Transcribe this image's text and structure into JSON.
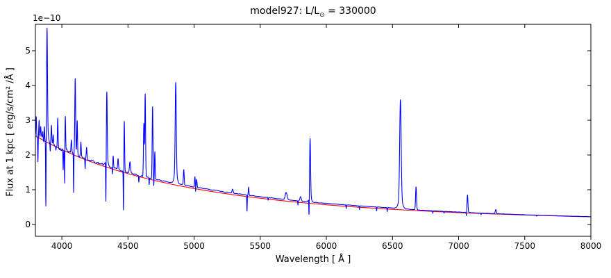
{
  "title": {
    "prefix": "model927: L/L",
    "sun_symbol": "⊙",
    "suffix": " = 330000"
  },
  "axes": {
    "xlabel": "Wavelength [ Å ]",
    "ylabel": "Flux at 1 kpc [ erg/s/cm² /Å ]",
    "y_offset_text": "1e−10",
    "xlim": [
      3800,
      8000
    ],
    "ylim": [
      -0.34,
      5.76
    ],
    "xticks": [
      4000,
      4500,
      5000,
      5500,
      6000,
      6500,
      7000,
      7500,
      8000
    ],
    "yticks": [
      0,
      1,
      2,
      3,
      4,
      5
    ]
  },
  "colors": {
    "spectrum": "#0000ff",
    "continuum": "#ff0000",
    "axis": "#000000",
    "background": "#ffffff",
    "text": "#000000"
  },
  "chart_data": {
    "type": "line",
    "title": "model927: L/L⊙ = 330000",
    "xlabel": "Wavelength [ Å ]",
    "ylabel": "Flux at 1 kpc [ erg/s/cm² /Å ]",
    "y_unit_scale": "1e-10",
    "xlim": [
      3800,
      8000
    ],
    "ylim": [
      -0.34,
      5.76
    ],
    "grid": false,
    "legend": false,
    "series": [
      {
        "name": "continuum-fit",
        "color": "#ff0000",
        "points": [
          [
            3800,
            2.55
          ],
          [
            3900,
            2.341
          ],
          [
            4000,
            2.154
          ],
          [
            4100,
            1.986
          ],
          [
            4200,
            1.834
          ],
          [
            4300,
            1.698
          ],
          [
            4400,
            1.574
          ],
          [
            4500,
            1.462
          ],
          [
            4600,
            1.36
          ],
          [
            4700,
            1.267
          ],
          [
            4800,
            1.182
          ],
          [
            4900,
            1.105
          ],
          [
            5000,
            1.034
          ],
          [
            5100,
            0.969
          ],
          [
            5200,
            0.909
          ],
          [
            5300,
            0.853
          ],
          [
            5400,
            0.802
          ],
          [
            5500,
            0.756
          ],
          [
            5600,
            0.712
          ],
          [
            5700,
            0.672
          ],
          [
            5800,
            0.634
          ],
          [
            5900,
            0.6
          ],
          [
            6000,
            0.567
          ],
          [
            6100,
            0.537
          ],
          [
            6200,
            0.509
          ],
          [
            6300,
            0.483
          ],
          [
            6400,
            0.459
          ],
          [
            6500,
            0.436
          ],
          [
            6600,
            0.415
          ],
          [
            6700,
            0.395
          ],
          [
            6800,
            0.376
          ],
          [
            6900,
            0.358
          ],
          [
            7000,
            0.342
          ],
          [
            7100,
            0.326
          ],
          [
            7200,
            0.311
          ],
          [
            7300,
            0.298
          ],
          [
            7400,
            0.285
          ],
          [
            7500,
            0.272
          ],
          [
            7600,
            0.261
          ],
          [
            7700,
            0.25
          ],
          [
            7800,
            0.239
          ],
          [
            7900,
            0.229
          ],
          [
            8000,
            0.22
          ]
        ]
      },
      {
        "name": "model-spectrum",
        "color": "#0000ff",
        "construction": {
          "base": "continuum-fit + veil_offset + noise",
          "veil_offset": [
            [
              3800,
              0.02
            ],
            [
              4300,
              0.03
            ],
            [
              4700,
              0.04
            ],
            [
              5000,
              0.05
            ],
            [
              5400,
              0.045
            ],
            [
              5900,
              0.04
            ],
            [
              6400,
              0.04
            ],
            [
              6540,
              0.04
            ],
            [
              6700,
              0.02
            ],
            [
              7000,
              0.015
            ],
            [
              7300,
              0.01
            ],
            [
              8000,
              0.005
            ]
          ],
          "noise_amplitude_regions": [
            [
              3800,
              3900,
              0.1
            ],
            [
              3900,
              4050,
              0.06
            ],
            [
              4050,
              4350,
              0.04
            ],
            [
              4350,
              4650,
              0.025
            ],
            [
              4650,
              5000,
              0.013
            ],
            [
              5000,
              5600,
              0.009
            ],
            [
              5600,
              6200,
              0.006
            ],
            [
              6200,
              8000,
              0.0035
            ]
          ],
          "emission_lines": [
            [
              3806,
              3.2,
              2.5
            ],
            [
              3828,
              2.95,
              2.2
            ],
            [
              3840,
              2.78,
              2.2
            ],
            [
              3856,
              2.65,
              2.0
            ],
            [
              3868,
              2.88,
              2.0
            ],
            [
              3888,
              5.3,
              3.2
            ],
            [
              3888,
              2.75,
              8.0
            ],
            [
              3921,
              2.85,
              2.5
            ],
            [
              3935,
              2.55,
              2.0
            ],
            [
              3969,
              3.1,
              2.5
            ],
            [
              4026,
              3.1,
              2.5
            ],
            [
              4072,
              2.45,
              3.0
            ],
            [
              4101,
              4.03,
              3.0
            ],
            [
              4101,
              2.2,
              9.0
            ],
            [
              4116,
              2.95,
              2.5
            ],
            [
              4144,
              2.35,
              2.5
            ],
            [
              4187,
              2.2,
              2.5
            ],
            [
              4340,
              3.58,
              3.0
            ],
            [
              4340,
              1.9,
              9.0
            ],
            [
              4388,
              1.95,
              2.5
            ],
            [
              4425,
              1.88,
              3.0
            ],
            [
              4472,
              2.96,
              2.5
            ],
            [
              4515,
              1.8,
              4.0
            ],
            [
              4620,
              2.9,
              3.0
            ],
            [
              4630,
              3.76,
              3.0
            ],
            [
              4686,
              3.4,
              3.0
            ],
            [
              4703,
              2.1,
              2.5
            ],
            [
              4861,
              3.72,
              4.0
            ],
            [
              4861,
              1.55,
              10.0
            ],
            [
              4922,
              1.58,
              3.0
            ],
            [
              5006,
              1.38,
              3.0
            ],
            [
              5019,
              1.3,
              3.0
            ],
            [
              5291,
              1.02,
              4.0
            ],
            [
              5412,
              1.08,
              2.5
            ],
            [
              5696,
              0.92,
              7.0
            ],
            [
              5805,
              0.8,
              5.0
            ],
            [
              5877,
              2.27,
              3.5
            ],
            [
              5877,
              0.85,
              8.0
            ],
            [
              6560,
              3.3,
              5.5
            ],
            [
              6560,
              0.75,
              14.0
            ],
            [
              6678,
              1.08,
              3.5
            ],
            [
              7067,
              0.85,
              3.5
            ],
            [
              7281,
              0.43,
              4.0
            ]
          ],
          "absorption_lines": [
            [
              3819,
              1.75,
              1.8
            ],
            [
              3879,
              0.3,
              1.8
            ],
            [
              3912,
              2.1,
              1.5
            ],
            [
              3955,
              2.18,
              1.5
            ],
            [
              4010,
              1.6,
              1.6
            ],
            [
              4021,
              1.1,
              1.4
            ],
            [
              4089,
              0.85,
              1.6
            ],
            [
              4131,
              1.95,
              1.5
            ],
            [
              4176,
              1.6,
              1.6
            ],
            [
              4333,
              0.35,
              1.7
            ],
            [
              4383,
              1.4,
              1.5
            ],
            [
              4466,
              0.35,
              1.7
            ],
            [
              4582,
              1.22,
              1.8
            ],
            [
              4660,
              1.15,
              1.6
            ],
            [
              4695,
              1.1,
              1.4
            ],
            [
              5011,
              0.88,
              1.3
            ],
            [
              5400,
              0.38,
              1.6
            ],
            [
              5560,
              0.7,
              1.5
            ],
            [
              5785,
              0.56,
              1.5
            ],
            [
              5869,
              0.05,
              1.7
            ],
            [
              6150,
              0.46,
              1.5
            ],
            [
              6250,
              0.43,
              1.5
            ],
            [
              6380,
              0.39,
              1.5
            ],
            [
              6460,
              0.37,
              1.5
            ],
            [
              6805,
              0.32,
              1.5
            ],
            [
              6890,
              0.33,
              1.5
            ],
            [
              7059,
              0.22,
              1.5
            ],
            [
              7170,
              0.28,
              1.5
            ],
            [
              7590,
              0.24,
              1.5
            ]
          ]
        }
      }
    ]
  }
}
